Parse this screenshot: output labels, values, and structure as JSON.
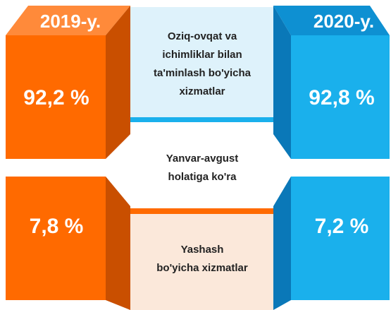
{
  "years": [
    "2019-y.",
    "2020-y."
  ],
  "top_panel": {
    "lines": [
      "Oziq-ovqat va",
      "ichimliklar bilan",
      "ta'minlash bo'yicha",
      "xizmatlar"
    ],
    "values": [
      "92,2 %",
      "92,8 %"
    ]
  },
  "middle_note": {
    "lines": [
      "Yanvar-avgust",
      "holatiga ko'ra"
    ]
  },
  "bottom_panel": {
    "lines": [
      "Yashash",
      "bo'yicha xizmatlar"
    ],
    "values": [
      "7,8 %",
      "7,2 %"
    ]
  }
}
